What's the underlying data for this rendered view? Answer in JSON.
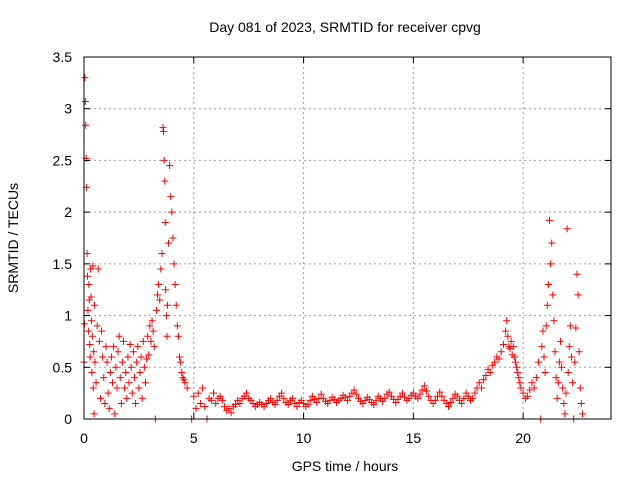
{
  "chart_data": {
    "type": "scatter",
    "title": "Day 081 of 2023, SRMTID for receiver cpvg",
    "xlabel": "GPS time / hours",
    "ylabel": "SRMTID / TECUs",
    "xlim": [
      0,
      24
    ],
    "ylim": [
      0,
      3.5
    ],
    "grid": true,
    "marker": "plus",
    "marker_color": "#ff0000",
    "xticks": [
      0,
      5,
      10,
      15,
      20
    ],
    "xtick_labels": [
      "0",
      "5",
      "10",
      "15",
      "20"
    ],
    "yticks": [
      0,
      0.5,
      1,
      1.5,
      2,
      2.5,
      3,
      3.5
    ],
    "ytick_labels": [
      "0",
      "0.5",
      "1",
      "1.5",
      "2",
      "2.5",
      "3",
      "3.5"
    ],
    "series": [
      {
        "name": "SRMTID",
        "points": [
          [
            0.0,
            0.55
          ],
          [
            0.02,
            0.92
          ],
          [
            0.04,
            3.3
          ],
          [
            0.06,
            3.07
          ],
          [
            0.08,
            2.84
          ],
          [
            0.1,
            2.52
          ],
          [
            0.12,
            2.24
          ],
          [
            0.14,
            1.6
          ],
          [
            0.16,
            1.38
          ],
          [
            0.18,
            1.05
          ],
          [
            0.2,
            0.85
          ],
          [
            0.22,
            1.3
          ],
          [
            0.24,
            1.15
          ],
          [
            0.26,
            0.72
          ],
          [
            0.28,
            0.6
          ],
          [
            0.3,
            1.45
          ],
          [
            0.32,
            1.18
          ],
          [
            0.34,
            0.95
          ],
          [
            0.36,
            0.45
          ],
          [
            0.38,
            0.8
          ],
          [
            0.4,
            1.48
          ],
          [
            0.42,
            0.3
          ],
          [
            0.44,
            0.65
          ],
          [
            0.46,
            0.05
          ],
          [
            0.48,
            1.1
          ],
          [
            0.5,
            0.55
          ],
          [
            0.55,
            0.35
          ],
          [
            0.6,
            0.9
          ],
          [
            0.65,
            1.45
          ],
          [
            0.7,
            0.75
          ],
          [
            0.75,
            0.2
          ],
          [
            0.8,
            0.85
          ],
          [
            0.85,
            0.6
          ],
          [
            0.9,
            0.4
          ],
          [
            0.95,
            0.15
          ],
          [
            1.0,
            0.7
          ],
          [
            1.05,
            0.55
          ],
          [
            1.1,
            0.25
          ],
          [
            1.15,
            0.1
          ],
          [
            1.2,
            0.45
          ],
          [
            1.25,
            0.6
          ],
          [
            1.3,
            0.35
          ],
          [
            1.35,
            0.7
          ],
          [
            1.4,
            0.05
          ],
          [
            1.45,
            0.5
          ],
          [
            1.5,
            0.3
          ],
          [
            1.55,
            0.65
          ],
          [
            1.6,
            0.8
          ],
          [
            1.65,
            0.4
          ],
          [
            1.7,
            0.15
          ],
          [
            1.75,
            0.55
          ],
          [
            1.8,
            0.75
          ],
          [
            1.85,
            0.3
          ],
          [
            1.9,
            0.45
          ],
          [
            1.95,
            0.2
          ],
          [
            2.0,
            0.6
          ],
          [
            2.05,
            0.35
          ],
          [
            2.1,
            0.72
          ],
          [
            2.15,
            0.5
          ],
          [
            2.2,
            0.25
          ],
          [
            2.25,
            0.65
          ],
          [
            2.3,
            0.4
          ],
          [
            2.35,
            0.15
          ],
          [
            2.4,
            0.55
          ],
          [
            2.45,
            0.7
          ],
          [
            2.5,
            0.3
          ],
          [
            2.55,
            0.45
          ],
          [
            2.6,
            0.6
          ],
          [
            2.65,
            0.2
          ],
          [
            2.7,
            0.75
          ],
          [
            2.75,
            0.5
          ],
          [
            2.8,
            0.35
          ],
          [
            2.85,
            0.58
          ],
          [
            2.9,
            0.8
          ],
          [
            2.95,
            0.62
          ],
          [
            3.0,
            0.9
          ],
          [
            3.05,
            0.75
          ],
          [
            3.1,
            0.95
          ],
          [
            3.15,
            0.85
          ],
          [
            3.2,
            0.7
          ],
          [
            3.25,
            0.0
          ],
          [
            3.3,
            1.05
          ],
          [
            3.35,
            1.2
          ],
          [
            3.4,
            1.3
          ],
          [
            3.45,
            1.15
          ],
          [
            3.5,
            1.45
          ],
          [
            3.55,
            1.6
          ],
          [
            3.6,
            2.82
          ],
          [
            3.62,
            2.78
          ],
          [
            3.65,
            2.5
          ],
          [
            3.68,
            2.3
          ],
          [
            3.7,
            1.9
          ],
          [
            3.72,
            1.25
          ],
          [
            3.75,
            1.0
          ],
          [
            3.78,
            0.8
          ],
          [
            3.8,
            1.1
          ],
          [
            3.85,
            1.7
          ],
          [
            3.9,
            2.45
          ],
          [
            3.95,
            2.15
          ],
          [
            4.0,
            2.0
          ],
          [
            4.05,
            1.75
          ],
          [
            4.1,
            1.5
          ],
          [
            4.15,
            1.3
          ],
          [
            4.2,
            1.1
          ],
          [
            4.25,
            0.9
          ],
          [
            4.3,
            0.8
          ],
          [
            4.35,
            0.6
          ],
          [
            4.4,
            0.55
          ],
          [
            4.45,
            0.45
          ],
          [
            4.5,
            0.4
          ],
          [
            4.55,
            0.38
          ],
          [
            4.6,
            0.35
          ],
          [
            4.7,
            0.3
          ],
          [
            4.9,
            0.0
          ],
          [
            5.0,
            0.22
          ],
          [
            5.1,
            0.1
          ],
          [
            5.2,
            0.25
          ],
          [
            5.3,
            0.15
          ],
          [
            5.4,
            0.3
          ],
          [
            5.5,
            0.12
          ],
          [
            5.6,
            0.0
          ],
          [
            5.7,
            0.2
          ],
          [
            5.8,
            0.18
          ],
          [
            5.9,
            0.25
          ],
          [
            6.0,
            0.15
          ],
          [
            6.1,
            0.2
          ],
          [
            6.2,
            0.22
          ],
          [
            6.3,
            0.18
          ],
          [
            6.4,
            0.12
          ],
          [
            6.5,
            0.08
          ],
          [
            6.6,
            0.1
          ],
          [
            6.7,
            0.06
          ],
          [
            6.8,
            0.12
          ],
          [
            6.9,
            0.14
          ],
          [
            7.0,
            0.18
          ],
          [
            7.1,
            0.15
          ],
          [
            7.2,
            0.2
          ],
          [
            7.3,
            0.22
          ],
          [
            7.4,
            0.25
          ],
          [
            7.5,
            0.2
          ],
          [
            7.6,
            0.18
          ],
          [
            7.7,
            0.15
          ],
          [
            7.8,
            0.12
          ],
          [
            7.9,
            0.14
          ],
          [
            8.0,
            0.16
          ],
          [
            8.1,
            0.14
          ],
          [
            8.2,
            0.12
          ],
          [
            8.3,
            0.15
          ],
          [
            8.4,
            0.18
          ],
          [
            8.5,
            0.2
          ],
          [
            8.6,
            0.16
          ],
          [
            8.7,
            0.14
          ],
          [
            8.8,
            0.18
          ],
          [
            8.9,
            0.22
          ],
          [
            9.0,
            0.25
          ],
          [
            9.1,
            0.2
          ],
          [
            9.2,
            0.16
          ],
          [
            9.3,
            0.14
          ],
          [
            9.4,
            0.18
          ],
          [
            9.5,
            0.2
          ],
          [
            9.6,
            0.15
          ],
          [
            9.7,
            0.12
          ],
          [
            9.8,
            0.16
          ],
          [
            9.9,
            0.18
          ],
          [
            10.0,
            0.15
          ],
          [
            10.1,
            0.12
          ],
          [
            10.2,
            0.14
          ],
          [
            10.3,
            0.18
          ],
          [
            10.4,
            0.22
          ],
          [
            10.5,
            0.19
          ],
          [
            10.6,
            0.16
          ],
          [
            10.7,
            0.2
          ],
          [
            10.8,
            0.24
          ],
          [
            10.9,
            0.2
          ],
          [
            11.0,
            0.17
          ],
          [
            11.1,
            0.15
          ],
          [
            11.2,
            0.18
          ],
          [
            11.3,
            0.21
          ],
          [
            11.4,
            0.19
          ],
          [
            11.5,
            0.16
          ],
          [
            11.6,
            0.18
          ],
          [
            11.7,
            0.2
          ],
          [
            11.8,
            0.23
          ],
          [
            11.9,
            0.21
          ],
          [
            12.0,
            0.18
          ],
          [
            12.1,
            0.22
          ],
          [
            12.2,
            0.25
          ],
          [
            12.3,
            0.28
          ],
          [
            12.4,
            0.24
          ],
          [
            12.5,
            0.2
          ],
          [
            12.6,
            0.17
          ],
          [
            12.7,
            0.15
          ],
          [
            12.8,
            0.18
          ],
          [
            12.9,
            0.21
          ],
          [
            13.0,
            0.19
          ],
          [
            13.1,
            0.16
          ],
          [
            13.2,
            0.14
          ],
          [
            13.3,
            0.18
          ],
          [
            13.4,
            0.22
          ],
          [
            13.5,
            0.2
          ],
          [
            13.6,
            0.17
          ],
          [
            13.7,
            0.2
          ],
          [
            13.8,
            0.24
          ],
          [
            13.9,
            0.26
          ],
          [
            14.0,
            0.22
          ],
          [
            14.1,
            0.19
          ],
          [
            14.2,
            0.16
          ],
          [
            14.3,
            0.19
          ],
          [
            14.4,
            0.22
          ],
          [
            14.5,
            0.25
          ],
          [
            14.6,
            0.21
          ],
          [
            14.7,
            0.18
          ],
          [
            14.8,
            0.2
          ],
          [
            14.9,
            0.23
          ],
          [
            15.0,
            0.25
          ],
          [
            15.1,
            0.22
          ],
          [
            15.2,
            0.2
          ],
          [
            15.3,
            0.24
          ],
          [
            15.4,
            0.28
          ],
          [
            15.5,
            0.32
          ],
          [
            15.6,
            0.27
          ],
          [
            15.7,
            0.22
          ],
          [
            15.8,
            0.18
          ],
          [
            15.9,
            0.15
          ],
          [
            16.0,
            0.18
          ],
          [
            16.1,
            0.22
          ],
          [
            16.2,
            0.26
          ],
          [
            16.3,
            0.22
          ],
          [
            16.4,
            0.18
          ],
          [
            16.5,
            0.15
          ],
          [
            16.6,
            0.12
          ],
          [
            16.7,
            0.16
          ],
          [
            16.8,
            0.2
          ],
          [
            16.9,
            0.24
          ],
          [
            17.0,
            0.22
          ],
          [
            17.1,
            0.18
          ],
          [
            17.2,
            0.15
          ],
          [
            17.3,
            0.2
          ],
          [
            17.4,
            0.25
          ],
          [
            17.5,
            0.22
          ],
          [
            17.6,
            0.18
          ],
          [
            17.7,
            0.2
          ],
          [
            17.8,
            0.25
          ],
          [
            17.9,
            0.3
          ],
          [
            18.0,
            0.35
          ],
          [
            18.1,
            0.3
          ],
          [
            18.2,
            0.38
          ],
          [
            18.3,
            0.42
          ],
          [
            18.4,
            0.48
          ],
          [
            18.5,
            0.45
          ],
          [
            18.6,
            0.52
          ],
          [
            18.7,
            0.55
          ],
          [
            18.8,
            0.6
          ],
          [
            18.9,
            0.58
          ],
          [
            19.0,
            0.65
          ],
          [
            19.1,
            0.72
          ],
          [
            19.2,
            0.85
          ],
          [
            19.25,
            0.95
          ],
          [
            19.3,
            0.8
          ],
          [
            19.35,
            0.7
          ],
          [
            19.4,
            0.68
          ],
          [
            19.45,
            0.75
          ],
          [
            19.5,
            0.62
          ],
          [
            19.55,
            0.7
          ],
          [
            19.6,
            0.6
          ],
          [
            19.65,
            0.55
          ],
          [
            19.7,
            0.5
          ],
          [
            19.75,
            0.45
          ],
          [
            19.8,
            0.4
          ],
          [
            19.85,
            0.35
          ],
          [
            19.9,
            0.3
          ],
          [
            20.0,
            0.25
          ],
          [
            20.1,
            0.2
          ],
          [
            20.2,
            0.22
          ],
          [
            20.3,
            0.28
          ],
          [
            20.4,
            0.35
          ],
          [
            20.5,
            0.3
          ],
          [
            20.6,
            0.4
          ],
          [
            20.7,
            0.55
          ],
          [
            20.8,
            0.0
          ],
          [
            20.85,
            0.7
          ],
          [
            20.9,
            0.85
          ],
          [
            20.95,
            0.6
          ],
          [
            21.0,
            0.45
          ],
          [
            21.05,
            0.9
          ],
          [
            21.1,
            1.1
          ],
          [
            21.15,
            1.3
          ],
          [
            21.2,
            1.92
          ],
          [
            21.25,
            1.5
          ],
          [
            21.3,
            1.7
          ],
          [
            21.35,
            1.2
          ],
          [
            21.4,
            0.95
          ],
          [
            21.45,
            0.65
          ],
          [
            21.5,
            0.4
          ],
          [
            21.55,
            0.2
          ],
          [
            21.6,
            0.35
          ],
          [
            21.65,
            0.55
          ],
          [
            21.7,
            0.75
          ],
          [
            21.75,
            0.5
          ],
          [
            21.8,
            0.3
          ],
          [
            21.85,
            0.15
          ],
          [
            21.9,
            0.05
          ],
          [
            21.95,
            0.25
          ],
          [
            22.0,
            1.84
          ],
          [
            22.05,
            0.45
          ],
          [
            22.1,
            0.7
          ],
          [
            22.15,
            0.9
          ],
          [
            22.2,
            0.6
          ],
          [
            22.25,
            0.35
          ],
          [
            22.3,
            0.0
          ],
          [
            22.35,
            0.55
          ],
          [
            22.4,
            0.88
          ],
          [
            22.45,
            1.4
          ],
          [
            22.5,
            1.2
          ],
          [
            22.55,
            0.65
          ],
          [
            22.6,
            0.3
          ],
          [
            22.65,
            0.15
          ],
          [
            22.7,
            0.05
          ]
        ]
      }
    ]
  }
}
